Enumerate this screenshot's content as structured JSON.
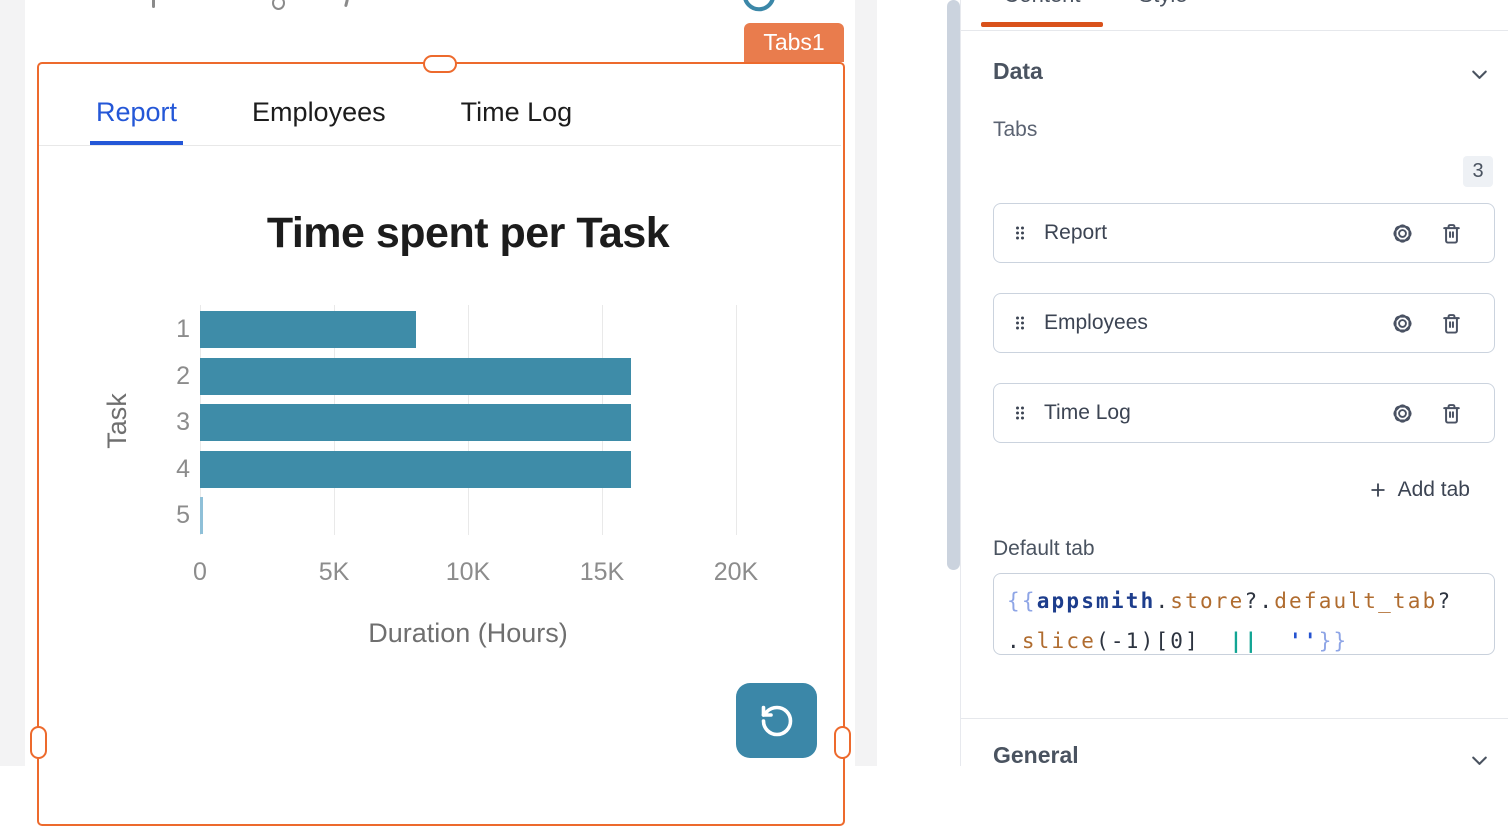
{
  "canvas": {
    "widget_label": "Tabs1",
    "widget_tabs": [
      {
        "label": "Report",
        "active": true
      },
      {
        "label": "Employees",
        "active": false
      },
      {
        "label": "Time Log",
        "active": false
      }
    ],
    "refresh_button_icon": "refresh-ccw-icon",
    "top_partial_icon": "refresh-ccw-icon"
  },
  "chart_data": {
    "type": "bar",
    "orientation": "horizontal",
    "title": "Time spent per Task",
    "xlabel": "Duration (Hours)",
    "ylabel": "Task",
    "categories": [
      "1",
      "2",
      "3",
      "4",
      "5"
    ],
    "values": [
      8050,
      16100,
      16100,
      16100,
      100
    ],
    "x_ticks": [
      {
        "label": "0",
        "value": 0
      },
      {
        "label": "5K",
        "value": 5000
      },
      {
        "label": "10K",
        "value": 10000
      },
      {
        "label": "15K",
        "value": 15000
      },
      {
        "label": "20K",
        "value": 20000
      }
    ],
    "xlim": [
      0,
      20000
    ],
    "grid": "vertical-only",
    "legend": "none",
    "bar_color": "#3E8CA8",
    "thin_bar_color": "#8FC0D8"
  },
  "property_pane": {
    "top_tabs": [
      {
        "label": "Content",
        "active": true
      },
      {
        "label": "Style",
        "active": false
      }
    ],
    "data_section": {
      "title": "Data",
      "collapse_icon": "chevron-down-icon",
      "tabs_field_label": "Tabs",
      "count_badge": "3",
      "tab_items": [
        {
          "label": "Report"
        },
        {
          "label": "Employees"
        },
        {
          "label": "Time Log"
        }
      ],
      "item_icons": [
        "drag-handle-icon",
        "settings-gear-icon",
        "trash-icon"
      ],
      "add_tab_label": "Add tab",
      "add_tab_icon": "plus-icon",
      "default_tab_label": "Default tab",
      "default_tab_code_text": "{{appsmith.store?.default_tab?.slice(-1)[0]  ||  ''}}",
      "default_tab_code_lines": [
        [
          [
            "{{",
            "brace"
          ],
          [
            "appsmith",
            "var"
          ],
          [
            ".",
            "plain"
          ],
          [
            "store",
            "prop"
          ],
          [
            "?.",
            "plain"
          ],
          [
            "default_tab",
            "prop"
          ],
          [
            "?",
            "plain"
          ]
        ],
        [
          [
            ".",
            "plain"
          ],
          [
            "slice",
            "prop"
          ],
          [
            "(-1)[0]",
            "plain"
          ],
          [
            "  ",
            "plain"
          ],
          [
            "||",
            "op"
          ],
          [
            "  ",
            "plain"
          ],
          [
            "''",
            "str"
          ],
          [
            "}}",
            "brace"
          ]
        ]
      ]
    },
    "general_section": {
      "title": "General",
      "collapse_icon": "chevron-down-icon"
    }
  },
  "colors": {
    "selection_orange": "#ED6A2D",
    "widget_label_bg": "#E97C4D",
    "active_tab_blue": "#2457D7",
    "button_teal": "#3B87A8",
    "pane_underline_orange": "#D9521B",
    "code": {
      "brace": "#8EA5E6",
      "var": "#1D3D8C",
      "plain": "#2D3440",
      "prop": "#B06C2F",
      "op": "#12A594",
      "str": "#2553D0"
    }
  }
}
